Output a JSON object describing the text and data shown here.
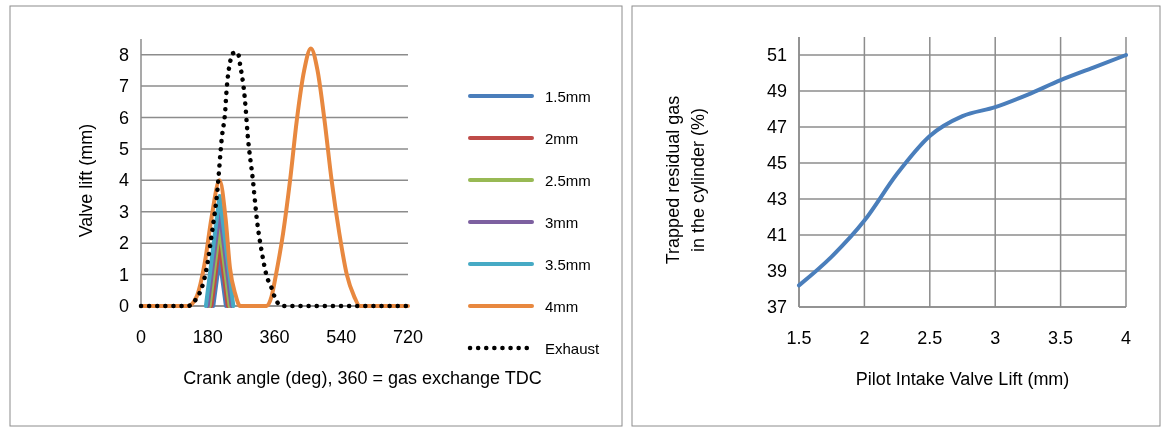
{
  "chart_data": [
    {
      "type": "line",
      "xlabel": "Crank angle (deg), 360 = gas exchange TDC",
      "ylabel": "Valve lift (mm)",
      "xlim": [
        0,
        720
      ],
      "xticks": [
        0,
        180,
        360,
        540,
        720
      ],
      "ylim": [
        0,
        8.5
      ],
      "yticks": [
        0,
        1,
        2,
        3,
        4,
        5,
        6,
        7,
        8
      ],
      "grid": "y",
      "legend": "right",
      "series": [
        {
          "name": "1.5mm",
          "color": "#4a7ebb",
          "x": [
            195,
            212,
            229
          ],
          "values": [
            0,
            1.5,
            0
          ]
        },
        {
          "name": "2mm",
          "color": "#be4b48",
          "x": [
            190,
            212,
            234
          ],
          "values": [
            0,
            2,
            0
          ]
        },
        {
          "name": "2.5mm",
          "color": "#98b954",
          "x": [
            185,
            212,
            239
          ],
          "values": [
            0,
            2.5,
            0
          ]
        },
        {
          "name": "3mm",
          "color": "#7d60a0",
          "x": [
            180,
            212,
            244
          ],
          "values": [
            0,
            3,
            0
          ]
        },
        {
          "name": "3.5mm",
          "color": "#46aac5",
          "x": [
            175,
            212,
            249
          ],
          "values": [
            0,
            3.5,
            0
          ]
        },
        {
          "name": "4mm",
          "color": "#e8883f",
          "x": [
            0,
            127,
            150,
            172,
            190,
            212,
            228,
            240,
            255,
            267,
            339,
            352,
            364,
            383,
            402,
            420,
            440,
            458,
            476,
            495,
            514,
            535,
            555,
            575,
            590,
            720
          ],
          "values": [
            0,
            0,
            0.3,
            1.38,
            2.8,
            4,
            2.8,
            1.2,
            0.35,
            0,
            0,
            0.3,
            1,
            2.3,
            4,
            5.9,
            7.5,
            8.2,
            7.5,
            5.9,
            4,
            2.3,
            1,
            0.3,
            0,
            0
          ]
        },
        {
          "name": "Exhaust",
          "color": "#000000",
          "line_style": "dotted",
          "x": [
            0,
            127,
            151,
            164,
            178,
            191,
            205,
            218,
            227,
            231,
            240,
            249,
            261,
            267,
            280,
            288,
            302,
            312,
            326,
            339,
            352,
            361,
            380,
            720
          ],
          "values": [
            0,
            0,
            0.27,
            0.58,
            1.27,
            2.3,
            3.56,
            5.36,
            6.2,
            6.9,
            7.75,
            8.05,
            8.07,
            7.7,
            6.6,
            5.4,
            3.98,
            2.8,
            1.7,
            0.95,
            0.58,
            0.27,
            0,
            0
          ]
        }
      ]
    },
    {
      "type": "line",
      "xlabel": "Pilot Intake Valve Lift (mm)",
      "ylabel": "Trapped residual gas in the cylinder (%)",
      "xlim": [
        1.5,
        4
      ],
      "xticks": [
        1.5,
        2,
        2.5,
        3,
        3.5,
        4
      ],
      "ylim": [
        37,
        52
      ],
      "yticks": [
        37,
        39,
        41,
        43,
        45,
        47,
        49,
        51
      ],
      "grid": true,
      "series": [
        {
          "color": "#4a7ebb",
          "x": [
            1.5,
            1.75,
            2,
            2.25,
            2.5,
            2.75,
            3,
            3.25,
            3.5,
            3.75,
            4
          ],
          "values": [
            38.2,
            39.8,
            41.8,
            44.4,
            46.5,
            47.6,
            48.1,
            48.8,
            49.6,
            50.3,
            51.0
          ]
        }
      ]
    }
  ]
}
